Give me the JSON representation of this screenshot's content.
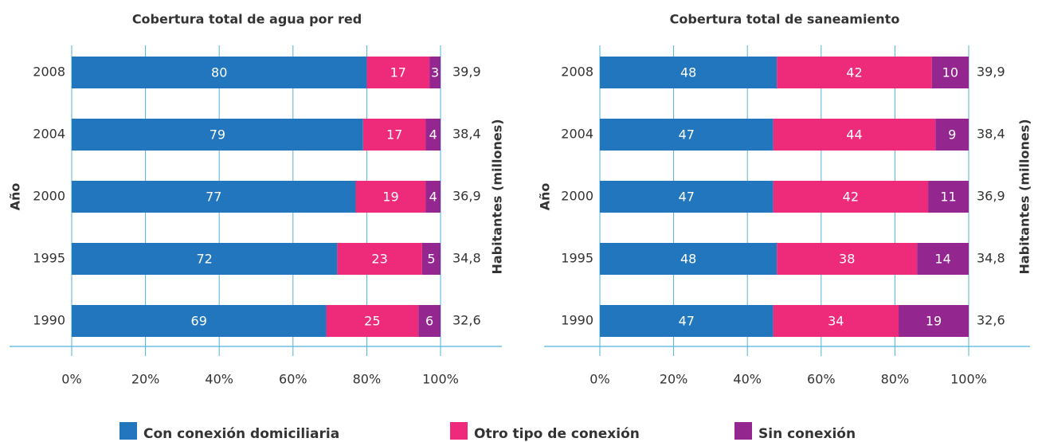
{
  "chart_data": [
    {
      "type": "stacked-bar-horizontal",
      "title": "Cobertura total de agua por red",
      "y_label": "Año",
      "y2_label": "Habitantes (millones)",
      "categories": [
        "2008",
        "2004",
        "2000",
        "1995",
        "1990"
      ],
      "y2_categories": [
        "39,9",
        "38,4",
        "36,9",
        "34,8",
        "32,6"
      ],
      "series": [
        {
          "name": "Con conexión domiciliaria",
          "color": "#2176bd",
          "values": [
            80,
            79,
            77,
            72,
            69
          ]
        },
        {
          "name": "Otro tipo de conexión",
          "color": "#ee2a7b",
          "values": [
            17,
            17,
            19,
            23,
            25
          ]
        },
        {
          "name": "Sin conexión",
          "color": "#93278f",
          "values": [
            3,
            4,
            4,
            5,
            6
          ]
        }
      ],
      "xlim": [
        0,
        100
      ],
      "xticks": [
        {
          "value": 0,
          "label": "0%"
        },
        {
          "value": 20,
          "label": "20%"
        },
        {
          "value": 40,
          "label": "40%"
        },
        {
          "value": 60,
          "label": "60%"
        },
        {
          "value": 80,
          "label": "80%"
        },
        {
          "value": 100,
          "label": "100%"
        }
      ],
      "grid": true
    },
    {
      "type": "stacked-bar-horizontal",
      "title": "Cobertura total de saneamiento",
      "y_label": "Año",
      "y2_label": "Habitantes (millones)",
      "categories": [
        "2008",
        "2004",
        "2000",
        "1995",
        "1990"
      ],
      "y2_categories": [
        "39,9",
        "38,4",
        "36,9",
        "34,8",
        "32,6"
      ],
      "series": [
        {
          "color": "#2176bd",
          "values": [
            48,
            47,
            47,
            48,
            47
          ]
        },
        {
          "color": "#ee2a7b",
          "values": [
            42,
            44,
            42,
            38,
            34
          ]
        },
        {
          "color": "#93278f",
          "values": [
            10,
            9,
            11,
            14,
            19
          ]
        }
      ],
      "xlim": [
        0,
        100
      ],
      "xticks": [
        {
          "value": 0,
          "label": "0%"
        },
        {
          "value": 20,
          "label": "20%"
        },
        {
          "value": 40,
          "label": "40%"
        },
        {
          "value": 60,
          "label": "60%"
        },
        {
          "value": 80,
          "label": "80%"
        },
        {
          "value": 100,
          "label": "100%"
        }
      ],
      "grid": true
    }
  ]
}
